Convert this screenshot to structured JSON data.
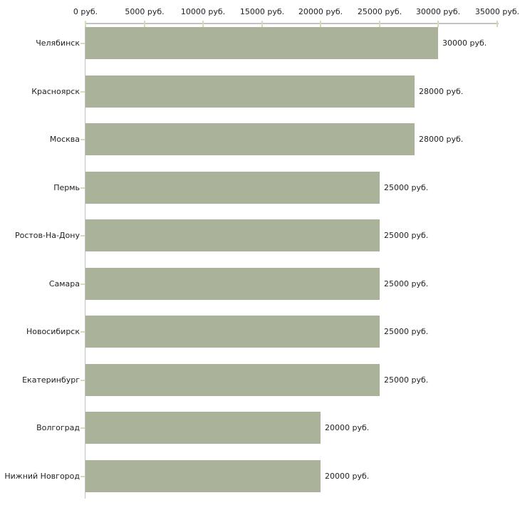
{
  "chart_data": {
    "type": "bar",
    "orientation": "horizontal",
    "title": "",
    "xlabel": "",
    "ylabel": "",
    "unit": "руб.",
    "grid": false,
    "legend": null,
    "xlim": [
      0,
      35000
    ],
    "x_ticks": [
      0,
      5000,
      10000,
      15000,
      20000,
      25000,
      30000,
      35000
    ],
    "x_tick_labels": [
      "0 руб.",
      "5000 руб.",
      "10000 руб.",
      "15000 руб.",
      "20000 руб.",
      "25000 руб.",
      "30000 руб.",
      "35000 руб."
    ],
    "categories": [
      "Челябинск",
      "Красноярск",
      "Москва",
      "Пермь",
      "Ростов-На-Дону",
      "Самара",
      "Новосибирск",
      "Екатеринбург",
      "Волгоград",
      "Нижний Новгород"
    ],
    "values": [
      30000,
      28000,
      28000,
      25000,
      25000,
      25000,
      25000,
      25000,
      20000,
      20000
    ],
    "value_labels": [
      "30000 руб.",
      "28000 руб.",
      "28000 руб.",
      "25000 руб.",
      "25000 руб.",
      "25000 руб.",
      "25000 руб.",
      "25000 руб.",
      "20000 руб.",
      "20000 руб."
    ],
    "colors": {
      "bar": "#abb29a",
      "axis_line": "#c2c2c2",
      "tick_mark": "#d8dab2",
      "text": "#222222",
      "background": "#ffffff"
    }
  }
}
